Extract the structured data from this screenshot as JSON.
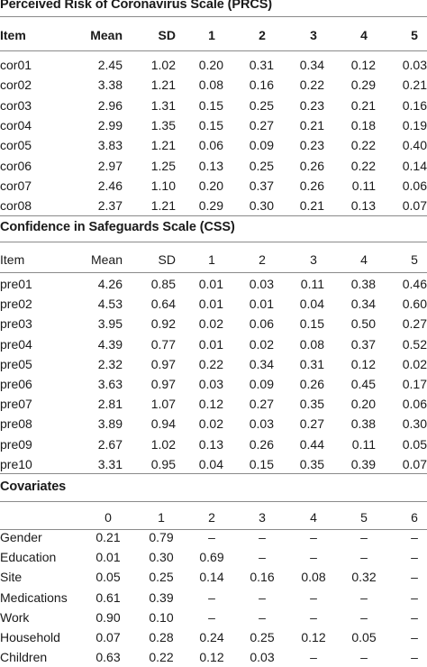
{
  "sections": [
    {
      "title": "Perceived Risk of Coronavirus Scale (PRCS)",
      "headers": [
        "Item",
        "Mean",
        "SD",
        "1",
        "2",
        "3",
        "4",
        "5"
      ],
      "rows": [
        [
          "cor01",
          "2.45",
          "1.02",
          "0.20",
          "0.31",
          "0.34",
          "0.12",
          "0.03"
        ],
        [
          "cor02",
          "3.38",
          "1.21",
          "0.08",
          "0.16",
          "0.22",
          "0.29",
          "0.21"
        ],
        [
          "cor03",
          "2.96",
          "1.31",
          "0.15",
          "0.25",
          "0.23",
          "0.21",
          "0.16"
        ],
        [
          "cor04",
          "2.99",
          "1.35",
          "0.15",
          "0.27",
          "0.21",
          "0.18",
          "0.19"
        ],
        [
          "cor05",
          "3.83",
          "1.21",
          "0.06",
          "0.09",
          "0.23",
          "0.22",
          "0.40"
        ],
        [
          "cor06",
          "2.97",
          "1.25",
          "0.13",
          "0.25",
          "0.26",
          "0.22",
          "0.14"
        ],
        [
          "cor07",
          "2.46",
          "1.10",
          "0.20",
          "0.37",
          "0.26",
          "0.11",
          "0.06"
        ],
        [
          "cor08",
          "2.37",
          "1.21",
          "0.29",
          "0.30",
          "0.21",
          "0.13",
          "0.07"
        ]
      ]
    },
    {
      "title": "Confidence in Safeguards Scale (CSS)",
      "headers": [
        "Item",
        "Mean",
        "SD",
        "1",
        "2",
        "3",
        "4",
        "5"
      ],
      "rows": [
        [
          "pre01",
          "4.26",
          "0.85",
          "0.01",
          "0.03",
          "0.11",
          "0.38",
          "0.46"
        ],
        [
          "pre02",
          "4.53",
          "0.64",
          "0.01",
          "0.01",
          "0.04",
          "0.34",
          "0.60"
        ],
        [
          "pre03",
          "3.95",
          "0.92",
          "0.02",
          "0.06",
          "0.15",
          "0.50",
          "0.27"
        ],
        [
          "pre04",
          "4.39",
          "0.77",
          "0.01",
          "0.02",
          "0.08",
          "0.37",
          "0.52"
        ],
        [
          "pre05",
          "2.32",
          "0.97",
          "0.22",
          "0.34",
          "0.31",
          "0.12",
          "0.02"
        ],
        [
          "pre06",
          "3.63",
          "0.97",
          "0.03",
          "0.09",
          "0.26",
          "0.45",
          "0.17"
        ],
        [
          "pre07",
          "2.81",
          "1.07",
          "0.12",
          "0.27",
          "0.35",
          "0.20",
          "0.06"
        ],
        [
          "pre08",
          "3.89",
          "0.94",
          "0.02",
          "0.03",
          "0.27",
          "0.38",
          "0.30"
        ],
        [
          "pre09",
          "2.67",
          "1.02",
          "0.13",
          "0.26",
          "0.44",
          "0.11",
          "0.05"
        ],
        [
          "pre10",
          "3.31",
          "0.95",
          "0.04",
          "0.15",
          "0.35",
          "0.39",
          "0.07"
        ]
      ]
    },
    {
      "title": "Covariates",
      "headers": [
        "",
        "0",
        "1",
        "2",
        "3",
        "4",
        "5",
        "6"
      ],
      "rows": [
        [
          "Gender",
          "0.21",
          "0.79",
          "–",
          "–",
          "–",
          "–",
          "–"
        ],
        [
          "Education",
          "0.01",
          "0.30",
          "0.69",
          "–",
          "–",
          "–",
          "–"
        ],
        [
          "Site",
          "0.05",
          "0.25",
          "0.14",
          "0.16",
          "0.08",
          "0.32",
          "–"
        ],
        [
          "Medications",
          "0.61",
          "0.39",
          "–",
          "–",
          "–",
          "–",
          "–"
        ],
        [
          "Work",
          "0.90",
          "0.10",
          "–",
          "–",
          "–",
          "–",
          "–"
        ],
        [
          "Household",
          "0.07",
          "0.28",
          "0.24",
          "0.25",
          "0.12",
          "0.05",
          "–"
        ],
        [
          "Children",
          "0.63",
          "0.22",
          "0.12",
          "0.03",
          "–",
          "–",
          "–"
        ]
      ]
    }
  ]
}
